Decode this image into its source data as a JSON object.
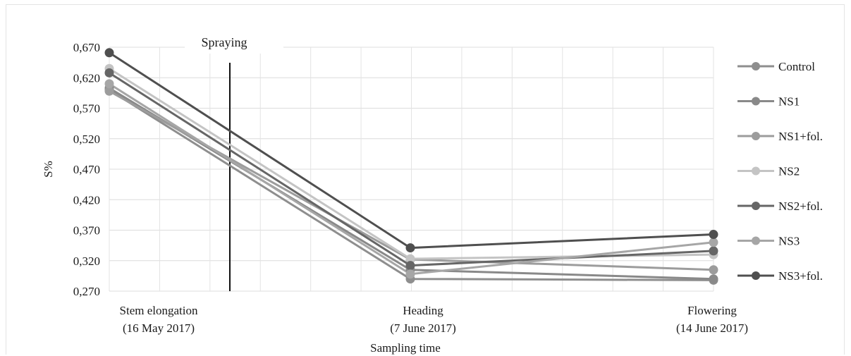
{
  "chart_data": {
    "type": "line",
    "xlabel": "Sampling time",
    "ylabel": "S%",
    "ylim": [
      0.27,
      0.67
    ],
    "y_ticks": [
      "0,670",
      "0,620",
      "0,570",
      "0,520",
      "0,470",
      "0,420",
      "0,370",
      "0,320",
      "0,270"
    ],
    "y_tick_values": [
      0.67,
      0.62,
      0.57,
      0.52,
      0.47,
      0.42,
      0.37,
      0.32,
      0.27
    ],
    "categories": [
      {
        "line1": "Stem elongation",
        "line2": "(16 May 2017)"
      },
      {
        "line1": "Heading",
        "line2": "(7 June 2017)"
      },
      {
        "line1": "Flowering",
        "line2": "(14 June 2017)"
      }
    ],
    "annotation": "Spraying",
    "grid": true,
    "legend_position": "right",
    "series": [
      {
        "name": "Control",
        "color": "#8e8e8e",
        "values": [
          0.6,
          0.29,
          0.288
        ]
      },
      {
        "name": "NS1",
        "color": "#898989",
        "values": [
          0.603,
          0.305,
          0.29
        ]
      },
      {
        "name": "NS1+fol.",
        "color": "#9c9c9c",
        "values": [
          0.598,
          0.322,
          0.305
        ]
      },
      {
        "name": "NS2",
        "color": "#c4c4c4",
        "values": [
          0.635,
          0.323,
          0.33
        ]
      },
      {
        "name": "NS2+fol.",
        "color": "#666666",
        "values": [
          0.628,
          0.312,
          0.336
        ]
      },
      {
        "name": "NS3",
        "color": "#a6a6a6",
        "values": [
          0.61,
          0.298,
          0.35
        ]
      },
      {
        "name": "NS3+fol.",
        "color": "#4f4f4f",
        "values": [
          0.661,
          0.341,
          0.363
        ]
      }
    ]
  }
}
